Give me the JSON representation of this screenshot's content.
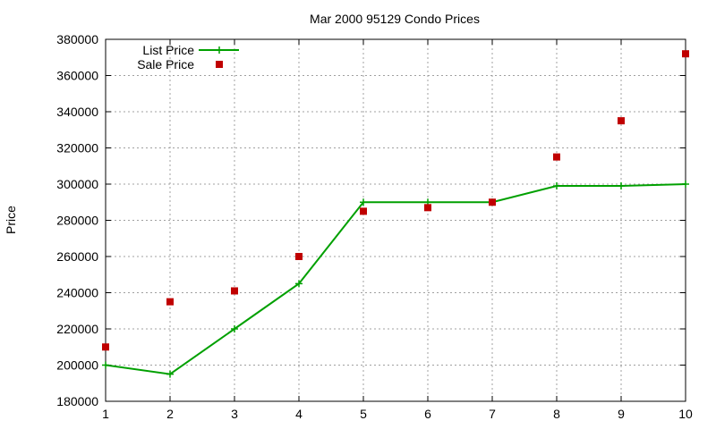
{
  "chart_data": {
    "type": "line",
    "title": "Mar 2000 95129 Condo Prices",
    "xlabel": "",
    "ylabel": "Price",
    "xlim": [
      1,
      10
    ],
    "ylim": [
      180000,
      380000
    ],
    "xticks": [
      1,
      2,
      3,
      4,
      5,
      6,
      7,
      8,
      9,
      10
    ],
    "yticks": [
      180000,
      200000,
      220000,
      240000,
      260000,
      280000,
      300000,
      320000,
      340000,
      360000,
      380000
    ],
    "grid": true,
    "legend_position": "top-left",
    "series": [
      {
        "name": "List Price",
        "style": "line-points",
        "color": "#00a000",
        "x": [
          1,
          2,
          3,
          4,
          5,
          6,
          7,
          8,
          9,
          10
        ],
        "y": [
          200000,
          195000,
          220000,
          245000,
          290000,
          290000,
          290000,
          299000,
          299000,
          300000
        ]
      },
      {
        "name": "Sale Price",
        "style": "points",
        "color": "#c00000",
        "x": [
          1,
          2,
          3,
          4,
          5,
          6,
          7,
          8,
          9,
          10
        ],
        "y": [
          210000,
          235000,
          241000,
          260000,
          285000,
          287000,
          290000,
          315000,
          335000,
          372000
        ]
      }
    ]
  }
}
